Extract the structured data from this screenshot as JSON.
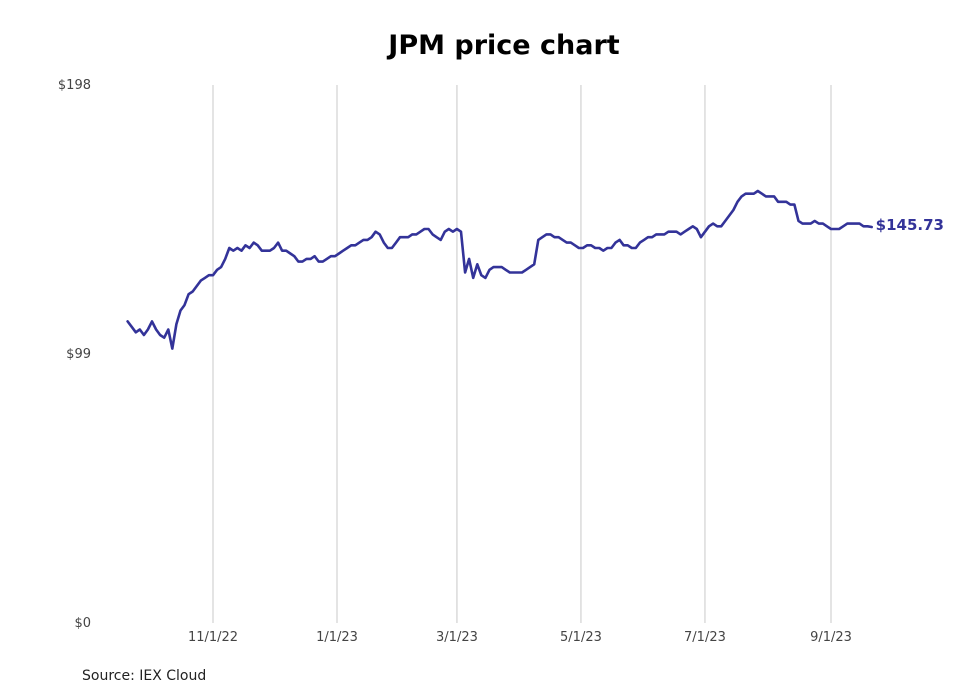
{
  "chart_data": {
    "type": "line",
    "title": "JPM price chart",
    "source": "Source: IEX Cloud",
    "yticks": [
      "$198",
      "$99",
      "$0"
    ],
    "ylim": [
      0,
      198
    ],
    "xticks": [
      "11/1/22",
      "1/1/23",
      "3/1/23",
      "5/1/23",
      "7/1/23",
      "9/1/23"
    ],
    "last_value_label": "$145.73",
    "line_color": "#333399",
    "grid": "vertical",
    "series": [
      {
        "x": [
          "2022-09-20",
          "2022-09-22",
          "2022-09-24",
          "2022-09-26",
          "2022-09-28",
          "2022-09-30",
          "2022-10-02",
          "2022-10-04",
          "2022-10-06",
          "2022-10-08",
          "2022-10-10",
          "2022-10-12",
          "2022-10-14",
          "2022-10-16",
          "2022-10-18",
          "2022-10-20",
          "2022-10-22",
          "2022-10-24",
          "2022-10-26",
          "2022-10-28",
          "2022-10-30",
          "2022-11-01",
          "2022-11-03",
          "2022-11-05",
          "2022-11-07",
          "2022-11-09",
          "2022-11-11",
          "2022-11-13",
          "2022-11-15",
          "2022-11-17",
          "2022-11-19",
          "2022-11-21",
          "2022-11-23",
          "2022-11-25",
          "2022-11-27",
          "2022-11-29",
          "2022-12-01",
          "2022-12-03",
          "2022-12-05",
          "2022-12-07",
          "2022-12-09",
          "2022-12-11",
          "2022-12-13",
          "2022-12-15",
          "2022-12-17",
          "2022-12-19",
          "2022-12-21",
          "2022-12-23",
          "2022-12-25",
          "2022-12-27",
          "2022-12-29",
          "2022-12-31",
          "2023-01-02",
          "2023-01-04",
          "2023-01-06",
          "2023-01-08",
          "2023-01-10",
          "2023-01-12",
          "2023-01-14",
          "2023-01-16",
          "2023-01-18",
          "2023-01-20",
          "2023-01-22",
          "2023-01-24",
          "2023-01-26",
          "2023-01-28",
          "2023-01-30",
          "2023-02-01",
          "2023-02-03",
          "2023-02-05",
          "2023-02-07",
          "2023-02-09",
          "2023-02-11",
          "2023-02-13",
          "2023-02-15",
          "2023-02-17",
          "2023-02-19",
          "2023-02-21",
          "2023-02-23",
          "2023-02-25",
          "2023-02-27",
          "2023-03-01",
          "2023-03-03",
          "2023-03-05",
          "2023-03-07",
          "2023-03-09",
          "2023-03-11",
          "2023-03-13",
          "2023-03-15",
          "2023-03-17",
          "2023-03-19",
          "2023-03-21",
          "2023-03-23",
          "2023-03-25",
          "2023-03-27",
          "2023-03-29",
          "2023-03-31",
          "2023-04-02",
          "2023-04-04",
          "2023-04-06",
          "2023-04-08",
          "2023-04-10",
          "2023-04-12",
          "2023-04-14",
          "2023-04-16",
          "2023-04-18",
          "2023-04-20",
          "2023-04-22",
          "2023-04-24",
          "2023-04-26",
          "2023-04-28",
          "2023-04-30",
          "2023-05-02",
          "2023-05-04",
          "2023-05-06",
          "2023-05-08",
          "2023-05-10",
          "2023-05-12",
          "2023-05-14",
          "2023-05-16",
          "2023-05-18",
          "2023-05-20",
          "2023-05-22",
          "2023-05-24",
          "2023-05-26",
          "2023-05-28",
          "2023-05-30",
          "2023-06-01",
          "2023-06-03",
          "2023-06-05",
          "2023-06-07",
          "2023-06-09",
          "2023-06-11",
          "2023-06-13",
          "2023-06-15",
          "2023-06-17",
          "2023-06-19",
          "2023-06-21",
          "2023-06-23",
          "2023-06-25",
          "2023-06-27",
          "2023-06-29",
          "2023-07-01",
          "2023-07-03",
          "2023-07-05",
          "2023-07-07",
          "2023-07-09",
          "2023-07-11",
          "2023-07-13",
          "2023-07-15",
          "2023-07-17",
          "2023-07-19",
          "2023-07-21",
          "2023-07-23",
          "2023-07-25",
          "2023-07-27",
          "2023-07-29",
          "2023-07-31",
          "2023-08-02",
          "2023-08-04",
          "2023-08-06",
          "2023-08-08",
          "2023-08-10",
          "2023-08-12",
          "2023-08-14",
          "2023-08-16",
          "2023-08-18",
          "2023-08-20",
          "2023-08-22",
          "2023-08-24",
          "2023-08-26",
          "2023-08-28",
          "2023-08-30",
          "2023-09-01",
          "2023-09-03",
          "2023-09-05",
          "2023-09-07",
          "2023-09-09",
          "2023-09-11",
          "2023-09-13",
          "2023-09-15",
          "2023-09-17",
          "2023-09-19",
          "2023-09-21"
        ],
        "y": [
          111,
          109,
          107,
          108,
          106,
          108,
          111,
          108,
          106,
          105,
          108,
          101,
          110,
          115,
          117,
          121,
          122,
          124,
          126,
          127,
          128,
          128,
          130,
          131,
          134,
          138,
          137,
          138,
          137,
          139,
          138,
          140,
          139,
          137,
          137,
          137,
          138,
          140,
          137,
          137,
          136,
          135,
          133,
          133,
          134,
          134,
          135,
          133,
          133,
          134,
          135,
          135,
          136,
          137,
          138,
          139,
          139,
          140,
          141,
          141,
          142,
          144,
          143,
          140,
          138,
          138,
          140,
          142,
          142,
          142,
          143,
          143,
          144,
          145,
          145,
          143,
          142,
          141,
          144,
          145,
          144,
          145,
          144,
          129,
          134,
          127,
          132,
          128,
          127,
          130,
          131,
          131,
          131,
          130,
          129,
          129,
          129,
          129,
          130,
          131,
          132,
          141,
          142,
          143,
          143,
          142,
          142,
          141,
          140,
          140,
          139,
          138,
          138,
          139,
          139,
          138,
          138,
          137,
          138,
          138,
          140,
          141,
          139,
          139,
          138,
          138,
          140,
          141,
          142,
          142,
          143,
          143,
          143,
          144,
          144,
          144,
          143,
          144,
          145,
          146,
          145,
          142,
          144,
          146,
          147,
          146,
          146,
          148,
          150,
          152,
          155,
          157,
          158,
          158,
          158,
          159,
          158,
          157,
          157,
          157,
          155,
          155,
          155,
          154,
          154,
          148,
          147,
          147,
          147,
          148,
          147,
          147,
          146,
          145,
          145,
          145,
          146,
          147,
          147,
          147,
          147,
          146,
          146,
          145.73
        ]
      }
    ]
  }
}
